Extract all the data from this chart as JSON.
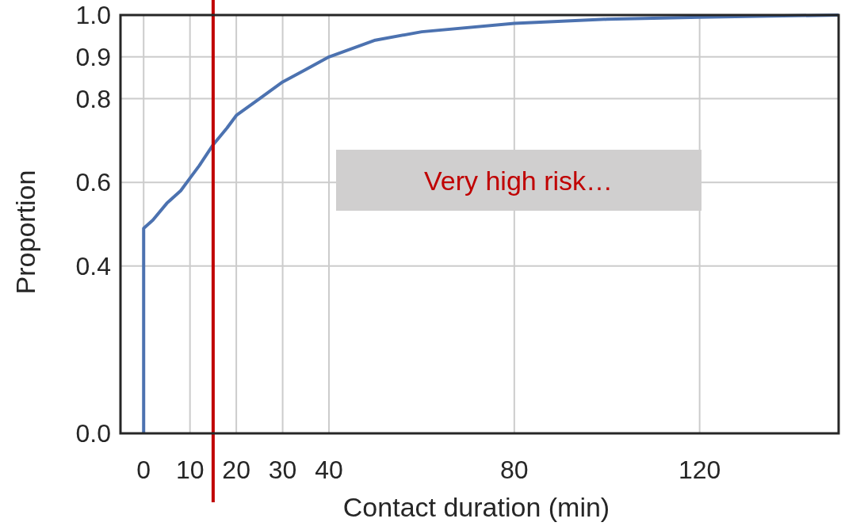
{
  "chart_data": {
    "type": "line",
    "xlabel": "Contact duration (min)",
    "ylabel": "Proportion",
    "series": [
      {
        "color": "#4c72b0",
        "x": [
          0,
          0,
          2,
          5,
          8,
          10,
          12,
          15,
          18,
          20,
          25,
          30,
          35,
          40,
          50,
          60,
          80,
          100,
          120,
          150
        ],
        "values": [
          0,
          0.49,
          0.51,
          0.55,
          0.58,
          0.61,
          0.64,
          0.69,
          0.73,
          0.76,
          0.8,
          0.84,
          0.87,
          0.9,
          0.94,
          0.96,
          0.98,
          0.99,
          0.995,
          1.0
        ]
      }
    ],
    "xlim": [
      -5,
      150
    ],
    "xticks": [
      0,
      10,
      20,
      30,
      40,
      80,
      120
    ],
    "ylim": [
      0,
      1
    ],
    "yticks": [
      {
        "value": 0,
        "label": "0.0"
      },
      0.4,
      0.6,
      0.8,
      0.9,
      {
        "value": 1,
        "label": "1.0"
      }
    ],
    "grid": true,
    "marker": "none",
    "line_style": "solid",
    "ref_lines": [
      {
        "axis": "x",
        "value": 15,
        "color": "#c00000"
      }
    ],
    "annotations": [
      "Very high risk…"
    ]
  }
}
